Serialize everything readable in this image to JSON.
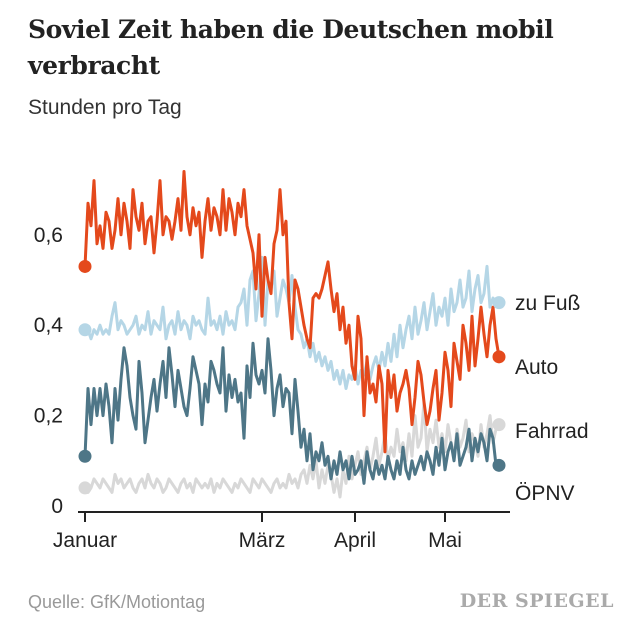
{
  "title": "Soviel Zeit haben die Deutschen mobil verbracht",
  "subtitle": "Stunden pro Tag",
  "source": "Quelle: GfK/Motiontag",
  "brand": "DER SPIEGEL",
  "chart_data": {
    "type": "line",
    "ylabel": "Stunden pro Tag",
    "ylim": [
      0,
      0.75
    ],
    "xlim": [
      0,
      138
    ],
    "yticks": [
      {
        "value": 0,
        "label": "0"
      },
      {
        "value": 0.2,
        "label": "0,2"
      },
      {
        "value": 0.4,
        "label": "0,4"
      },
      {
        "value": 0.6,
        "label": "0,6"
      }
    ],
    "xticks": [
      {
        "day": 0,
        "label": "Januar"
      },
      {
        "day": 59,
        "label": "März"
      },
      {
        "day": 90,
        "label": "April"
      },
      {
        "day": 120,
        "label": "Mai"
      }
    ],
    "grid": false,
    "legend": "direct labels at line ends",
    "series": [
      {
        "name": "zu Fuß",
        "color": "#b5d6e6",
        "values": [
          0.39,
          0.39,
          0.37,
          0.39,
          0.38,
          0.4,
          0.38,
          0.39,
          0.38,
          0.42,
          0.45,
          0.39,
          0.41,
          0.4,
          0.38,
          0.39,
          0.4,
          0.42,
          0.38,
          0.4,
          0.39,
          0.43,
          0.38,
          0.41,
          0.4,
          0.39,
          0.44,
          0.37,
          0.4,
          0.41,
          0.38,
          0.43,
          0.39,
          0.41,
          0.4,
          0.37,
          0.42,
          0.4,
          0.41,
          0.39,
          0.38,
          0.46,
          0.4,
          0.41,
          0.39,
          0.42,
          0.38,
          0.43,
          0.4,
          0.41,
          0.39,
          0.44,
          0.45,
          0.48,
          0.4,
          0.5,
          0.52,
          0.41,
          0.47,
          0.55,
          0.4,
          0.5,
          0.48,
          0.52,
          0.42,
          0.46,
          0.5,
          0.48,
          0.45,
          0.51,
          0.44,
          0.39,
          0.38,
          0.35,
          0.37,
          0.33,
          0.36,
          0.32,
          0.34,
          0.31,
          0.33,
          0.3,
          0.32,
          0.28,
          0.3,
          0.27,
          0.3,
          0.26,
          0.29,
          0.28,
          0.31,
          0.27,
          0.3,
          0.29,
          0.32,
          0.28,
          0.31,
          0.33,
          0.3,
          0.34,
          0.31,
          0.36,
          0.32,
          0.38,
          0.33,
          0.4,
          0.35,
          0.39,
          0.42,
          0.37,
          0.44,
          0.38,
          0.41,
          0.45,
          0.39,
          0.43,
          0.47,
          0.4,
          0.44,
          0.42,
          0.46,
          0.4,
          0.48,
          0.43,
          0.45,
          0.5,
          0.44,
          0.46,
          0.52,
          0.43,
          0.48,
          0.51,
          0.45,
          0.47,
          0.53,
          0.44,
          0.46,
          0.45,
          0.45
        ]
      },
      {
        "name": "Auto",
        "color": "#e4491c",
        "values": [
          0.53,
          0.67,
          0.62,
          0.72,
          0.58,
          0.62,
          0.57,
          0.65,
          0.63,
          0.57,
          0.61,
          0.68,
          0.6,
          0.67,
          0.63,
          0.57,
          0.7,
          0.64,
          0.61,
          0.67,
          0.58,
          0.63,
          0.64,
          0.56,
          0.63,
          0.72,
          0.6,
          0.64,
          0.63,
          0.59,
          0.63,
          0.68,
          0.61,
          0.74,
          0.64,
          0.6,
          0.66,
          0.62,
          0.65,
          0.55,
          0.63,
          0.68,
          0.61,
          0.66,
          0.64,
          0.6,
          0.7,
          0.61,
          0.68,
          0.65,
          0.6,
          0.67,
          0.64,
          0.7,
          0.62,
          0.59,
          0.56,
          0.48,
          0.6,
          0.42,
          0.55,
          0.5,
          0.47,
          0.58,
          0.61,
          0.7,
          0.6,
          0.63,
          0.45,
          0.37,
          0.5,
          0.48,
          0.44,
          0.4,
          0.37,
          0.35,
          0.46,
          0.47,
          0.46,
          0.48,
          0.51,
          0.54,
          0.48,
          0.43,
          0.47,
          0.39,
          0.44,
          0.36,
          0.4,
          0.31,
          0.28,
          0.42,
          0.37,
          0.2,
          0.33,
          0.25,
          0.27,
          0.23,
          0.31,
          0.27,
          0.12,
          0.3,
          0.24,
          0.29,
          0.21,
          0.25,
          0.27,
          0.3,
          0.26,
          0.18,
          0.24,
          0.32,
          0.29,
          0.23,
          0.18,
          0.21,
          0.26,
          0.3,
          0.19,
          0.25,
          0.34,
          0.3,
          0.22,
          0.36,
          0.32,
          0.28,
          0.4,
          0.36,
          0.3,
          0.42,
          0.31,
          0.37,
          0.44,
          0.38,
          0.33,
          0.4,
          0.44,
          0.37,
          0.33
        ]
      },
      {
        "name": "Fahrrad",
        "color": "#d8d8d8",
        "values": [
          0.04,
          0.03,
          0.04,
          0.06,
          0.05,
          0.04,
          0.06,
          0.05,
          0.04,
          0.03,
          0.07,
          0.05,
          0.06,
          0.04,
          0.05,
          0.06,
          0.04,
          0.03,
          0.05,
          0.06,
          0.04,
          0.07,
          0.05,
          0.04,
          0.06,
          0.05,
          0.03,
          0.04,
          0.06,
          0.05,
          0.04,
          0.03,
          0.05,
          0.06,
          0.04,
          0.05,
          0.03,
          0.06,
          0.05,
          0.04,
          0.05,
          0.04,
          0.06,
          0.03,
          0.05,
          0.04,
          0.06,
          0.05,
          0.04,
          0.03,
          0.05,
          0.04,
          0.06,
          0.05,
          0.04,
          0.03,
          0.06,
          0.05,
          0.04,
          0.06,
          0.05,
          0.04,
          0.03,
          0.05,
          0.06,
          0.04,
          0.05,
          0.04,
          0.07,
          0.05,
          0.06,
          0.04,
          0.07,
          0.08,
          0.05,
          0.09,
          0.06,
          0.1,
          0.04,
          0.08,
          0.05,
          0.09,
          0.07,
          0.03,
          0.06,
          0.02,
          0.08,
          0.05,
          0.11,
          0.06,
          0.09,
          0.12,
          0.07,
          0.1,
          0.13,
          0.08,
          0.11,
          0.15,
          0.09,
          0.12,
          0.16,
          0.1,
          0.13,
          0.11,
          0.17,
          0.12,
          0.14,
          0.1,
          0.16,
          0.11,
          0.2,
          0.13,
          0.15,
          0.23,
          0.12,
          0.17,
          0.14,
          0.19,
          0.13,
          0.16,
          0.12,
          0.18,
          0.14,
          0.11,
          0.17,
          0.13,
          0.15,
          0.19,
          0.12,
          0.16,
          0.14,
          0.11,
          0.18,
          0.13,
          0.16,
          0.2,
          0.14,
          0.17,
          0.18
        ]
      },
      {
        "name": "ÖPNV",
        "color": "#4e7687",
        "values": [
          0.11,
          0.26,
          0.18,
          0.26,
          0.2,
          0.26,
          0.2,
          0.27,
          0.22,
          0.14,
          0.26,
          0.19,
          0.28,
          0.35,
          0.31,
          0.24,
          0.2,
          0.17,
          0.32,
          0.25,
          0.14,
          0.19,
          0.24,
          0.28,
          0.21,
          0.27,
          0.32,
          0.24,
          0.35,
          0.29,
          0.22,
          0.3,
          0.26,
          0.22,
          0.2,
          0.26,
          0.33,
          0.3,
          0.27,
          0.18,
          0.27,
          0.23,
          0.32,
          0.3,
          0.27,
          0.25,
          0.35,
          0.21,
          0.29,
          0.24,
          0.28,
          0.23,
          0.25,
          0.15,
          0.31,
          0.24,
          0.36,
          0.29,
          0.27,
          0.3,
          0.25,
          0.37,
          0.3,
          0.2,
          0.26,
          0.29,
          0.22,
          0.26,
          0.25,
          0.16,
          0.28,
          0.21,
          0.13,
          0.17,
          0.1,
          0.16,
          0.08,
          0.12,
          0.1,
          0.14,
          0.09,
          0.11,
          0.06,
          0.1,
          0.07,
          0.12,
          0.08,
          0.1,
          0.06,
          0.11,
          0.07,
          0.08,
          0.1,
          0.05,
          0.12,
          0.08,
          0.06,
          0.1,
          0.07,
          0.09,
          0.06,
          0.11,
          0.08,
          0.06,
          0.1,
          0.07,
          0.13,
          0.08,
          0.06,
          0.1,
          0.07,
          0.09,
          0.11,
          0.08,
          0.12,
          0.1,
          0.07,
          0.13,
          0.09,
          0.15,
          0.08,
          0.12,
          0.14,
          0.1,
          0.16,
          0.09,
          0.11,
          0.13,
          0.17,
          0.1,
          0.15,
          0.12,
          0.16,
          0.14,
          0.1,
          0.17,
          0.15,
          0.09,
          0.09
        ]
      }
    ]
  }
}
